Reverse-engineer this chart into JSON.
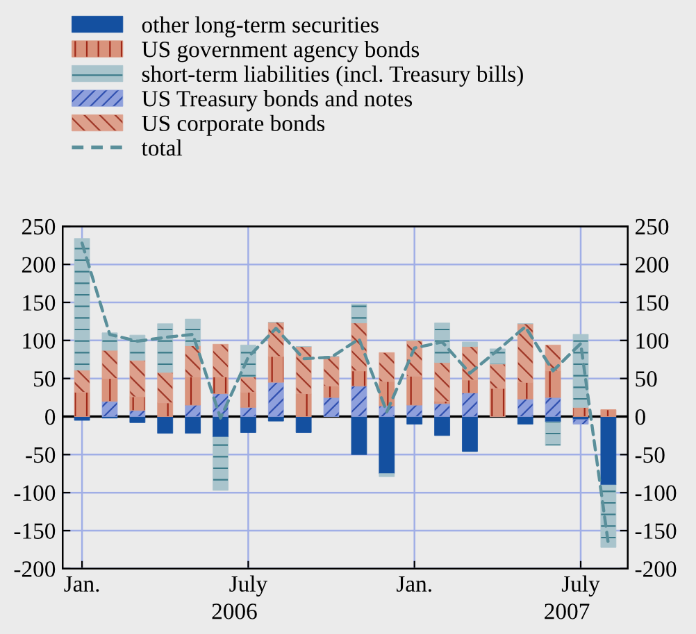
{
  "chart_data": {
    "type": "bar",
    "stacked": true,
    "categories": [
      "Jan.",
      null,
      null,
      null,
      null,
      null,
      "July",
      null,
      null,
      null,
      null,
      null,
      "Jan.",
      null,
      null,
      null,
      null,
      null,
      "July",
      null
    ],
    "series": [
      {
        "name": "other long-term securities",
        "color": "#1450a0",
        "values": [
          -5,
          -2,
          -8,
          -22,
          -22,
          -27,
          -21,
          -6,
          -21,
          0,
          -50,
          -75,
          -10,
          -25,
          -46,
          0,
          -10,
          -7,
          -4,
          -90
        ]
      },
      {
        "name": "US Treasury bonds and notes",
        "color": "#8fa0dc",
        "values": [
          0,
          20,
          8,
          0,
          15,
          30,
          12,
          45,
          0,
          25,
          40,
          14,
          15,
          17,
          31,
          0,
          23,
          25,
          -6,
          0
        ]
      },
      {
        "name": "US government agency bonds",
        "color": "#d9937c",
        "values": [
          32,
          30,
          18,
          18,
          37,
          22,
          20,
          34,
          30,
          15,
          20,
          32,
          38,
          3,
          17,
          37,
          22,
          35,
          12,
          9
        ]
      },
      {
        "name": "US corporate bonds",
        "color": "#dda08c",
        "values": [
          29,
          37,
          48,
          40,
          41,
          43,
          20,
          45,
          62,
          39,
          63,
          38,
          47,
          51,
          44,
          32,
          77,
          34,
          0,
          0
        ]
      },
      {
        "name": "short-term liabilities (incl. Treasury bills)",
        "color": "#a9c4cc",
        "values": [
          173,
          23,
          33,
          64,
          35,
          -70,
          42,
          0,
          0,
          0,
          25,
          -4,
          0,
          52,
          6,
          20,
          0,
          -31,
          96,
          -82
        ]
      },
      {
        "name": "total",
        "type": "line",
        "color": "#5a8f9a",
        "line_style": "dashed",
        "marker": "none",
        "values": [
          228,
          108,
          99,
          104,
          108,
          -2,
          78,
          116,
          76,
          78,
          102,
          6,
          90,
          98,
          57,
          87,
          118,
          60,
          96,
          -168
        ]
      }
    ],
    "ylim": [
      -200,
      250
    ],
    "yticks": [
      -200,
      -150,
      -100,
      -50,
      0,
      50,
      100,
      150,
      200,
      250
    ],
    "y2lim": [
      -200,
      250
    ],
    "y2ticks": [
      -200,
      -150,
      -100,
      -50,
      0,
      50,
      100,
      150,
      200,
      250
    ],
    "grid": true,
    "legend": "top",
    "annotations": [
      "2006",
      "2007"
    ]
  }
}
